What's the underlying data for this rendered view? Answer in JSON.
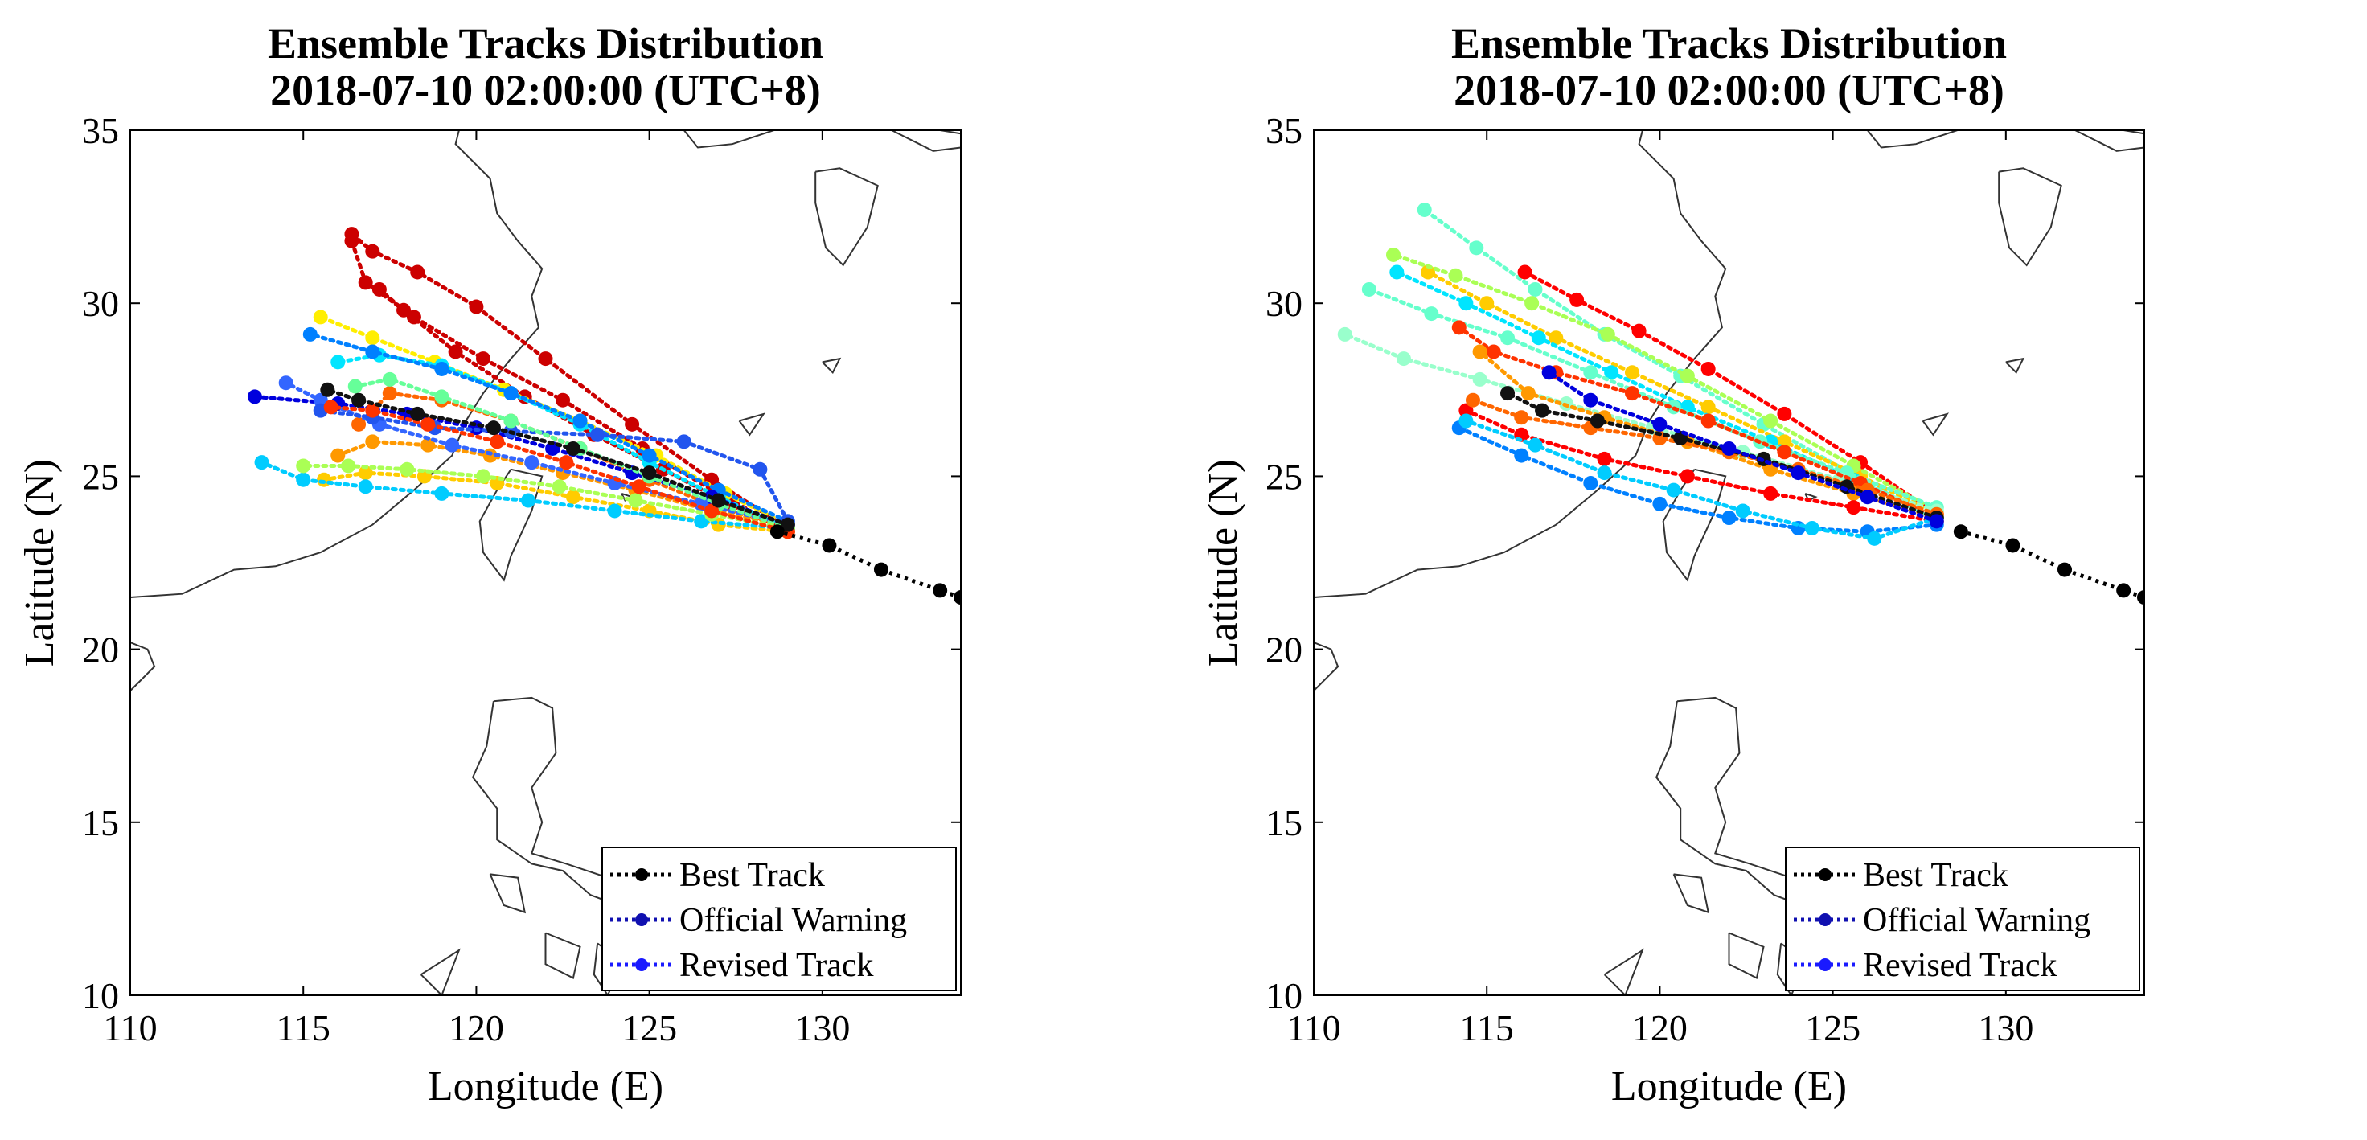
{
  "chart_data": [
    {
      "type": "line",
      "title": [
        "Ensemble Tracks Distribution",
        "2018-07-10 02:00:00 (UTC+8)"
      ],
      "xlabel": "Longitude (E)",
      "ylabel": "Latitude (N)",
      "xlim": [
        110,
        134
      ],
      "ylim": [
        10,
        35
      ],
      "xticks": [
        "110",
        "115",
        "120",
        "125",
        "130"
      ],
      "yticks": [
        "10",
        "15",
        "20",
        "25",
        "30",
        "35"
      ],
      "legend_position": "bottom-right",
      "legend": [
        {
          "label": "Best Track",
          "color": "#000000"
        },
        {
          "label": "Official Warning",
          "color": "#1010b0"
        },
        {
          "label": "Revised Track",
          "color": "#1a1aff"
        }
      ],
      "best_track": {
        "x": [
          134,
          133.4,
          131.7,
          130.2,
          128.7
        ],
        "y": [
          21.5,
          21.7,
          22.3,
          23.0,
          23.4
        ]
      },
      "ensemble": [
        {
          "color": "#cc0000",
          "x": [
            129.0,
            126.8,
            124.5,
            122.0,
            120.0,
            118.3,
            117.0,
            116.4
          ],
          "y": [
            23.5,
            24.9,
            26.5,
            28.4,
            29.9,
            30.9,
            31.5,
            32.0
          ]
        },
        {
          "color": "#cc0000",
          "x": [
            129.0,
            127.0,
            124.8,
            122.5,
            120.2,
            118.2,
            116.8,
            116.4
          ],
          "y": [
            23.4,
            24.5,
            25.8,
            27.2,
            28.4,
            29.6,
            30.6,
            31.8
          ]
        },
        {
          "color": "#cc0000",
          "x": [
            129.0,
            127.3,
            125.4,
            123.4,
            121.4,
            119.4,
            117.9,
            117.2
          ],
          "y": [
            23.4,
            24.2,
            25.2,
            26.2,
            27.3,
            28.6,
            29.8,
            30.4
          ]
        },
        {
          "color": "#ff6600",
          "x": [
            129.0,
            127.0,
            125.0,
            123.0,
            121.0,
            119.0,
            117.5,
            116.6
          ],
          "y": [
            23.5,
            24.1,
            24.9,
            25.8,
            26.6,
            27.2,
            27.4,
            26.5
          ]
        },
        {
          "color": "#ff9900",
          "x": [
            129.0,
            126.8,
            124.6,
            122.5,
            120.4,
            118.6,
            117.0,
            116.0
          ],
          "y": [
            23.6,
            24.0,
            24.6,
            25.1,
            25.6,
            25.9,
            26.0,
            25.6
          ]
        },
        {
          "color": "#ffcc00",
          "x": [
            129.0,
            127.0,
            125.0,
            122.8,
            120.6,
            118.5,
            116.8,
            115.6
          ],
          "y": [
            23.4,
            23.6,
            24.0,
            24.4,
            24.8,
            25.0,
            25.1,
            24.9
          ]
        },
        {
          "color": "#ffee00",
          "x": [
            129.0,
            127.2,
            125.2,
            123.0,
            120.8,
            118.8,
            117.0,
            115.5
          ],
          "y": [
            23.6,
            24.5,
            25.6,
            26.6,
            27.5,
            28.3,
            29.0,
            29.6
          ]
        },
        {
          "color": "#00e5ff",
          "x": [
            129.0,
            127.0,
            125.0,
            123.0,
            121.0,
            119.0,
            117.2,
            116.0
          ],
          "y": [
            23.5,
            24.4,
            25.4,
            26.5,
            27.4,
            28.2,
            28.5,
            28.3
          ]
        },
        {
          "color": "#00ccff",
          "x": [
            129.0,
            126.5,
            124.0,
            121.5,
            119.0,
            116.8,
            115.0,
            113.8
          ],
          "y": [
            23.5,
            23.7,
            24.0,
            24.3,
            24.5,
            24.7,
            24.9,
            25.4
          ]
        },
        {
          "color": "#0080ff",
          "x": [
            129.0,
            127.0,
            125.0,
            123.0,
            121.0,
            119.0,
            117.0,
            115.2
          ],
          "y": [
            23.7,
            24.6,
            25.6,
            26.6,
            27.4,
            28.1,
            28.6,
            29.1
          ]
        },
        {
          "color": "#0000dd",
          "x": [
            129.0,
            126.8,
            124.5,
            122.2,
            120.0,
            118.0,
            116.0,
            113.6
          ],
          "y": [
            23.6,
            24.4,
            25.1,
            25.8,
            26.4,
            26.8,
            27.1,
            27.3
          ]
        },
        {
          "color": "#3366ff",
          "x": [
            129.0,
            126.5,
            124.0,
            121.6,
            119.3,
            117.2,
            115.5,
            114.5
          ],
          "y": [
            23.6,
            24.2,
            24.8,
            25.4,
            25.9,
            26.5,
            27.2,
            27.7
          ]
        },
        {
          "color": "#2255ee",
          "x": [
            129.0,
            128.2,
            126.0,
            123.5,
            121.0,
            118.8,
            117.0,
            115.5
          ],
          "y": [
            23.7,
            25.2,
            26.0,
            26.2,
            26.3,
            26.4,
            26.7,
            26.9
          ]
        },
        {
          "color": "#66ff99",
          "x": [
            129.0,
            127.0,
            125.0,
            123.0,
            121.0,
            119.0,
            117.5,
            116.5
          ],
          "y": [
            23.5,
            24.2,
            25.0,
            25.8,
            26.6,
            27.3,
            27.8,
            27.6
          ]
        },
        {
          "color": "#aaff55",
          "x": [
            129.0,
            126.8,
            124.6,
            122.4,
            120.2,
            118.0,
            116.3,
            115.0
          ],
          "y": [
            23.5,
            23.9,
            24.3,
            24.7,
            25.0,
            25.2,
            25.3,
            25.3
          ]
        },
        {
          "color": "#ff3300",
          "x": [
            129.0,
            126.8,
            124.7,
            122.6,
            120.6,
            118.6,
            117.0,
            115.8
          ],
          "y": [
            23.4,
            24.0,
            24.7,
            25.4,
            26.0,
            26.5,
            26.9,
            27.0
          ]
        },
        {
          "color": "#111111",
          "x": [
            129.0,
            127.0,
            125.0,
            122.8,
            120.5,
            118.3,
            116.6,
            115.7
          ],
          "y": [
            23.6,
            24.3,
            25.1,
            25.8,
            26.4,
            26.8,
            27.2,
            27.5
          ]
        }
      ]
    },
    {
      "type": "line",
      "title": [
        "Ensemble Tracks Distribution",
        "2018-07-10 02:00:00 (UTC+8)"
      ],
      "xlabel": "Longitude (E)",
      "ylabel": "Latitude (N)",
      "xlim": [
        110,
        134
      ],
      "ylim": [
        10,
        35
      ],
      "xticks": [
        "110",
        "115",
        "120",
        "125",
        "130"
      ],
      "yticks": [
        "10",
        "15",
        "20",
        "25",
        "30",
        "35"
      ],
      "legend_position": "bottom-right",
      "legend": [
        {
          "label": "Best Track",
          "color": "#000000"
        },
        {
          "label": "Official Warning",
          "color": "#1010b0"
        },
        {
          "label": "Revised Track",
          "color": "#1a1aff"
        }
      ],
      "best_track": {
        "x": [
          134,
          133.4,
          131.7,
          130.2,
          128.7
        ],
        "y": [
          21.5,
          21.7,
          22.3,
          23.0,
          23.4
        ]
      },
      "ensemble": [
        {
          "color": "#66ffcc",
          "x": [
            128.0,
            125.5,
            123.0,
            120.6,
            118.4,
            116.4,
            114.7,
            113.2
          ],
          "y": [
            23.7,
            25.1,
            26.5,
            27.9,
            29.1,
            30.4,
            31.6,
            32.7
          ]
        },
        {
          "color": "#ff0000",
          "x": [
            128.0,
            125.8,
            123.6,
            121.4,
            119.4,
            117.6,
            116.1
          ],
          "y": [
            23.9,
            25.4,
            26.8,
            28.1,
            29.2,
            30.1,
            30.9
          ]
        },
        {
          "color": "#ffcc00",
          "x": [
            128.0,
            125.8,
            123.6,
            121.4,
            119.2,
            117.0,
            115.0,
            113.3
          ],
          "y": [
            23.9,
            25.0,
            26.0,
            27.0,
            28.0,
            29.0,
            30.0,
            30.9
          ]
        },
        {
          "color": "#00e5ff",
          "x": [
            128.0,
            125.6,
            123.2,
            120.8,
            118.6,
            116.5,
            114.4,
            112.4
          ],
          "y": [
            23.8,
            24.9,
            26.0,
            27.0,
            28.0,
            29.0,
            30.0,
            30.9
          ]
        },
        {
          "color": "#aaff55",
          "x": [
            128.0,
            125.6,
            123.2,
            120.8,
            118.5,
            116.3,
            114.1,
            112.3
          ],
          "y": [
            24.0,
            25.3,
            26.6,
            27.9,
            29.1,
            30.0,
            30.8,
            31.4
          ]
        },
        {
          "color": "#66ffcc",
          "x": [
            128.0,
            125.4,
            122.9,
            120.4,
            118.0,
            115.6,
            113.4,
            111.6
          ],
          "y": [
            24.1,
            25.1,
            26.0,
            27.0,
            28.0,
            29.0,
            29.7,
            30.4
          ]
        },
        {
          "color": "#99ffcc",
          "x": [
            128.0,
            125.2,
            122.4,
            119.8,
            117.3,
            114.8,
            112.6,
            110.9
          ],
          "y": [
            24.0,
            24.9,
            25.7,
            26.4,
            27.1,
            27.8,
            28.4,
            29.1
          ]
        },
        {
          "color": "#ff3300",
          "x": [
            128.0,
            125.8,
            123.6,
            121.4,
            119.2,
            117.0,
            115.2,
            114.2
          ],
          "y": [
            23.8,
            24.8,
            25.7,
            26.6,
            27.4,
            28.0,
            28.6,
            29.3
          ]
        },
        {
          "color": "#ff9900",
          "x": [
            128.0,
            125.6,
            123.2,
            120.8,
            118.4,
            116.2,
            114.8
          ],
          "y": [
            23.8,
            24.5,
            25.2,
            26.0,
            26.7,
            27.4,
            28.6
          ]
        },
        {
          "color": "#ff0000",
          "x": [
            128.0,
            125.6,
            123.2,
            120.8,
            118.4,
            116.0,
            114.4
          ],
          "y": [
            23.7,
            24.1,
            24.5,
            25.0,
            25.5,
            26.2,
            26.9
          ]
        },
        {
          "color": "#0080ff",
          "x": [
            128.0,
            126.0,
            124.0,
            122.0,
            120.0,
            118.0,
            116.0,
            114.2
          ],
          "y": [
            23.6,
            23.4,
            23.5,
            23.8,
            24.2,
            24.8,
            25.6,
            26.4
          ]
        },
        {
          "color": "#00ccff",
          "x": [
            128.0,
            126.2,
            124.4,
            122.4,
            120.4,
            118.4,
            116.4,
            114.4
          ],
          "y": [
            23.8,
            23.2,
            23.5,
            24.0,
            24.6,
            25.1,
            25.9,
            26.6
          ]
        },
        {
          "color": "#ff6600",
          "x": [
            128.0,
            126.0,
            124.0,
            122.0,
            120.0,
            118.0,
            116.0,
            114.6
          ],
          "y": [
            23.9,
            24.6,
            25.2,
            25.7,
            26.1,
            26.4,
            26.7,
            27.2
          ]
        },
        {
          "color": "#111111",
          "x": [
            128.0,
            125.4,
            123.0,
            120.6,
            118.2,
            116.6,
            115.6
          ],
          "y": [
            23.8,
            24.7,
            25.5,
            26.1,
            26.6,
            26.9,
            27.4
          ]
        },
        {
          "color": "#0000dd",
          "x": [
            128.0,
            126.0,
            124.0,
            122.0,
            120.0,
            118.0,
            116.8
          ],
          "y": [
            23.7,
            24.4,
            25.1,
            25.8,
            26.5,
            27.2,
            28.0
          ]
        }
      ]
    }
  ]
}
